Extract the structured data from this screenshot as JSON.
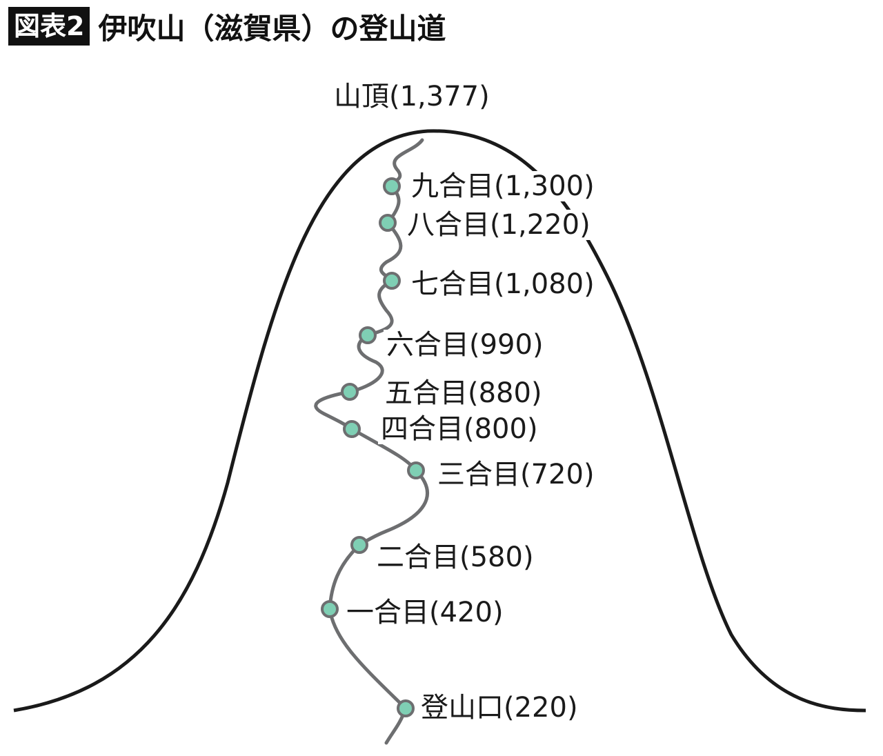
{
  "header": {
    "badge": "図表2",
    "title": "伊吹山（滋賀県）の登山道"
  },
  "summit": {
    "label": "山頂(1,377)"
  },
  "stations": [
    {
      "label": "九合目(1,300)"
    },
    {
      "label": "八合目(1,220)"
    },
    {
      "label": "七合目(1,080)"
    },
    {
      "label": "六合目(990)"
    },
    {
      "label": "五合目(880)"
    },
    {
      "label": "四合目(800)"
    },
    {
      "label": "三合目(720)"
    },
    {
      "label": "二合目(580)"
    },
    {
      "label": "一合目(420)"
    },
    {
      "label": "登山口(220)"
    }
  ],
  "colors": {
    "mountain": "#1a1a1a",
    "trail": "#6d6e70",
    "marker": "#7fcfb4"
  }
}
